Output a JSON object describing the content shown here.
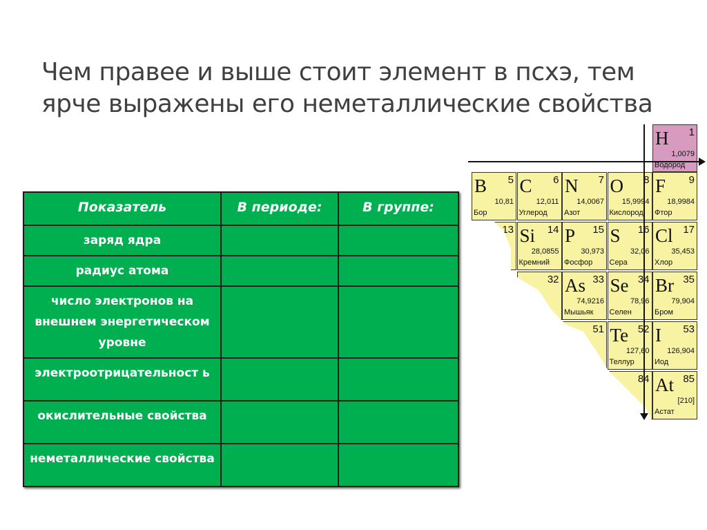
{
  "title": "Чем правее  и выше стоит элемент в псхэ, тем ярче выражены его неметаллические свойства",
  "table": {
    "headers": [
      "Показатель",
      "В периоде:",
      "В группе:"
    ],
    "rows": [
      {
        "label": "заряд ядра",
        "period": "",
        "group": ""
      },
      {
        "label": "радиус атома",
        "period": "",
        "group": ""
      },
      {
        "label": "число электронов на внешнем энергетическом уровне",
        "period": "",
        "group": ""
      },
      {
        "label": "электроотрицательност ь",
        "period": "",
        "group": ""
      },
      {
        "label": "окислительные свойства",
        "period": "",
        "group": ""
      },
      {
        "label": "неметаллические свойства",
        "period": "",
        "group": ""
      }
    ]
  },
  "colors": {
    "table_green": "#00b050",
    "cell_yellow": "#f7f3a3",
    "hydrogen_pink": "#d79bc0"
  },
  "periodic_table": {
    "hydrogen": {
      "symbol": "H",
      "number": "1",
      "mass": "1,0079",
      "name": "Водород"
    },
    "elements": [
      {
        "symbol": "B",
        "number": "5",
        "mass": "10,81",
        "name": "Бор"
      },
      {
        "symbol": "C",
        "number": "6",
        "mass": "12,011",
        "name": "Углерод"
      },
      {
        "symbol": "N",
        "number": "7",
        "mass": "14,0067",
        "name": "Азот"
      },
      {
        "symbol": "O",
        "number": "8",
        "mass": "15,9994",
        "name": "Кислород"
      },
      {
        "symbol": "F",
        "number": "9",
        "mass": "18,9984",
        "name": "Фтор"
      },
      {
        "symbol": "",
        "number": "13",
        "mass": "",
        "name": ""
      },
      {
        "symbol": "Si",
        "number": "14",
        "mass": "28,0855",
        "name": "Кремний"
      },
      {
        "symbol": "P",
        "number": "15",
        "mass": "30,973",
        "name": "Фосфор"
      },
      {
        "symbol": "S",
        "number": "16",
        "mass": "32,06",
        "name": "Сера"
      },
      {
        "symbol": "Cl",
        "number": "17",
        "mass": "35,453",
        "name": "Хлор"
      },
      {
        "symbol": "",
        "number": "32",
        "mass": "",
        "name": ""
      },
      {
        "symbol": "As",
        "number": "33",
        "mass": "74,9216",
        "name": "Мышьяк"
      },
      {
        "symbol": "Se",
        "number": "34",
        "mass": "78,96",
        "name": "Селен"
      },
      {
        "symbol": "Br",
        "number": "35",
        "mass": "79,904",
        "name": "Бром"
      },
      {
        "symbol": "",
        "number": "51",
        "mass": "",
        "name": ""
      },
      {
        "symbol": "Te",
        "number": "52",
        "mass": "127,60",
        "name": "Теллур"
      },
      {
        "symbol": "I",
        "number": "53",
        "mass": "126,904",
        "name": "Иод"
      },
      {
        "symbol": "",
        "number": "84",
        "mass": "",
        "name": ""
      },
      {
        "symbol": "At",
        "number": "85",
        "mass": "[210]",
        "name": "Астат"
      }
    ]
  }
}
